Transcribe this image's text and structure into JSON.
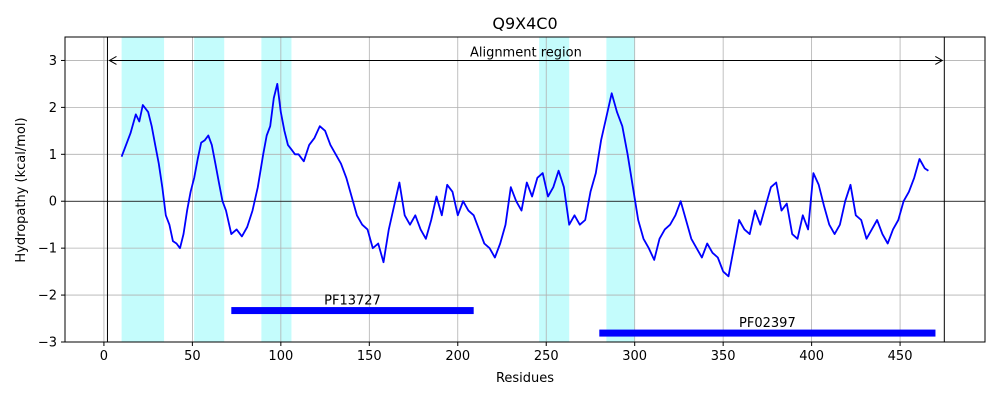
{
  "chart_data": {
    "type": "line",
    "title": "Q9X4C0",
    "xlabel": "Residues",
    "ylabel": "Hydropathy (kcal/mol)",
    "xlim": [
      -22,
      498
    ],
    "ylim": [
      -3,
      3.5
    ],
    "xticks": [
      0,
      50,
      100,
      150,
      200,
      250,
      300,
      350,
      400,
      450
    ],
    "yticks": [
      -3,
      -2,
      -1,
      0,
      1,
      2,
      3
    ],
    "grid": true,
    "colors": {
      "line": "#0000ff",
      "hydrophobic_region": "#c4fcfc",
      "domain_bar": "#0000ff",
      "axes": "#000000",
      "grid": "#b0b0b0"
    },
    "hydrophobic_regions": [
      [
        10,
        34
      ],
      [
        51,
        68
      ],
      [
        89,
        106
      ],
      [
        246,
        263
      ],
      [
        284,
        300
      ]
    ],
    "alignment_region": {
      "label": "Alignment region",
      "start": 2,
      "end": 475,
      "y": 3.0
    },
    "domains": [
      {
        "name": "PF13727",
        "start": 72,
        "end": 209,
        "y": -2.33
      },
      {
        "name": "PF02397",
        "start": 280,
        "end": 470,
        "y": -2.81
      }
    ],
    "series": [
      {
        "x": [
          10,
          15,
          18,
          20,
          22,
          25,
          27,
          29,
          31,
          33,
          35,
          37,
          39,
          41,
          43,
          45,
          47,
          49,
          51,
          53,
          55,
          57,
          59,
          61,
          63,
          65,
          67,
          69,
          72,
          75,
          78,
          81,
          84,
          87,
          90,
          92,
          94,
          96,
          98,
          100,
          102,
          104,
          106,
          108,
          110,
          113,
          116,
          119,
          122,
          125,
          128,
          131,
          134,
          137,
          140,
          143,
          146,
          149,
          152,
          155,
          158,
          161,
          164,
          167,
          170,
          173,
          176,
          179,
          182,
          185,
          188,
          191,
          194,
          197,
          200,
          203,
          206,
          209,
          212,
          215,
          218,
          221,
          224,
          227,
          230,
          233,
          236,
          239,
          242,
          245,
          248,
          251,
          254,
          257,
          260,
          263,
          266,
          269,
          272,
          275,
          278,
          281,
          284,
          287,
          290,
          293,
          296,
          299,
          302,
          305,
          308,
          311,
          314,
          317,
          320,
          323,
          326,
          329,
          332,
          335,
          338,
          341,
          344,
          347,
          350,
          353,
          356,
          359,
          362,
          365,
          368,
          371,
          374,
          377,
          380,
          383,
          386,
          389,
          392,
          395,
          398,
          401,
          404,
          407,
          410,
          413,
          416,
          419,
          422,
          425,
          428,
          431,
          434,
          437,
          440,
          443,
          446,
          449,
          452,
          455,
          458,
          461,
          464,
          466
        ],
        "y": [
          0.95,
          1.45,
          1.85,
          1.7,
          2.05,
          1.9,
          1.6,
          1.2,
          0.8,
          0.3,
          -0.3,
          -0.5,
          -0.85,
          -0.9,
          -1.0,
          -0.7,
          -0.2,
          0.2,
          0.5,
          0.9,
          1.25,
          1.3,
          1.4,
          1.2,
          0.8,
          0.4,
          0.0,
          -0.2,
          -0.7,
          -0.6,
          -0.75,
          -0.55,
          -0.2,
          0.3,
          1.0,
          1.4,
          1.6,
          2.2,
          2.5,
          1.9,
          1.5,
          1.2,
          1.1,
          1.0,
          1.0,
          0.85,
          1.2,
          1.35,
          1.6,
          1.5,
          1.2,
          1.0,
          0.8,
          0.5,
          0.1,
          -0.3,
          -0.5,
          -0.6,
          -1.0,
          -0.9,
          -1.3,
          -0.6,
          -0.1,
          0.4,
          -0.3,
          -0.5,
          -0.3,
          -0.6,
          -0.8,
          -0.4,
          0.1,
          -0.3,
          0.35,
          0.2,
          -0.3,
          0.0,
          -0.2,
          -0.3,
          -0.6,
          -0.9,
          -1.0,
          -1.2,
          -0.9,
          -0.5,
          0.3,
          0.0,
          -0.2,
          0.4,
          0.1,
          0.5,
          0.6,
          0.1,
          0.3,
          0.65,
          0.3,
          -0.5,
          -0.3,
          -0.5,
          -0.4,
          0.2,
          0.6,
          1.3,
          1.8,
          2.3,
          1.9,
          1.6,
          1.0,
          0.3,
          -0.4,
          -0.8,
          -1.0,
          -1.25,
          -0.8,
          -0.6,
          -0.5,
          -0.3,
          0.0,
          -0.4,
          -0.8,
          -1.0,
          -1.2,
          -0.9,
          -1.1,
          -1.2,
          -1.5,
          -1.6,
          -1.0,
          -0.4,
          -0.6,
          -0.7,
          -0.2,
          -0.5,
          -0.1,
          0.3,
          0.4,
          -0.2,
          -0.05,
          -0.7,
          -0.8,
          -0.3,
          -0.6,
          0.6,
          0.35,
          -0.1,
          -0.5,
          -0.7,
          -0.5,
          0.0,
          0.35,
          -0.3,
          -0.4,
          -0.8,
          -0.6,
          -0.4,
          -0.7,
          -0.9,
          -0.6,
          -0.4,
          0.0,
          0.2,
          0.5,
          0.9,
          0.7,
          0.65
        ]
      }
    ]
  }
}
